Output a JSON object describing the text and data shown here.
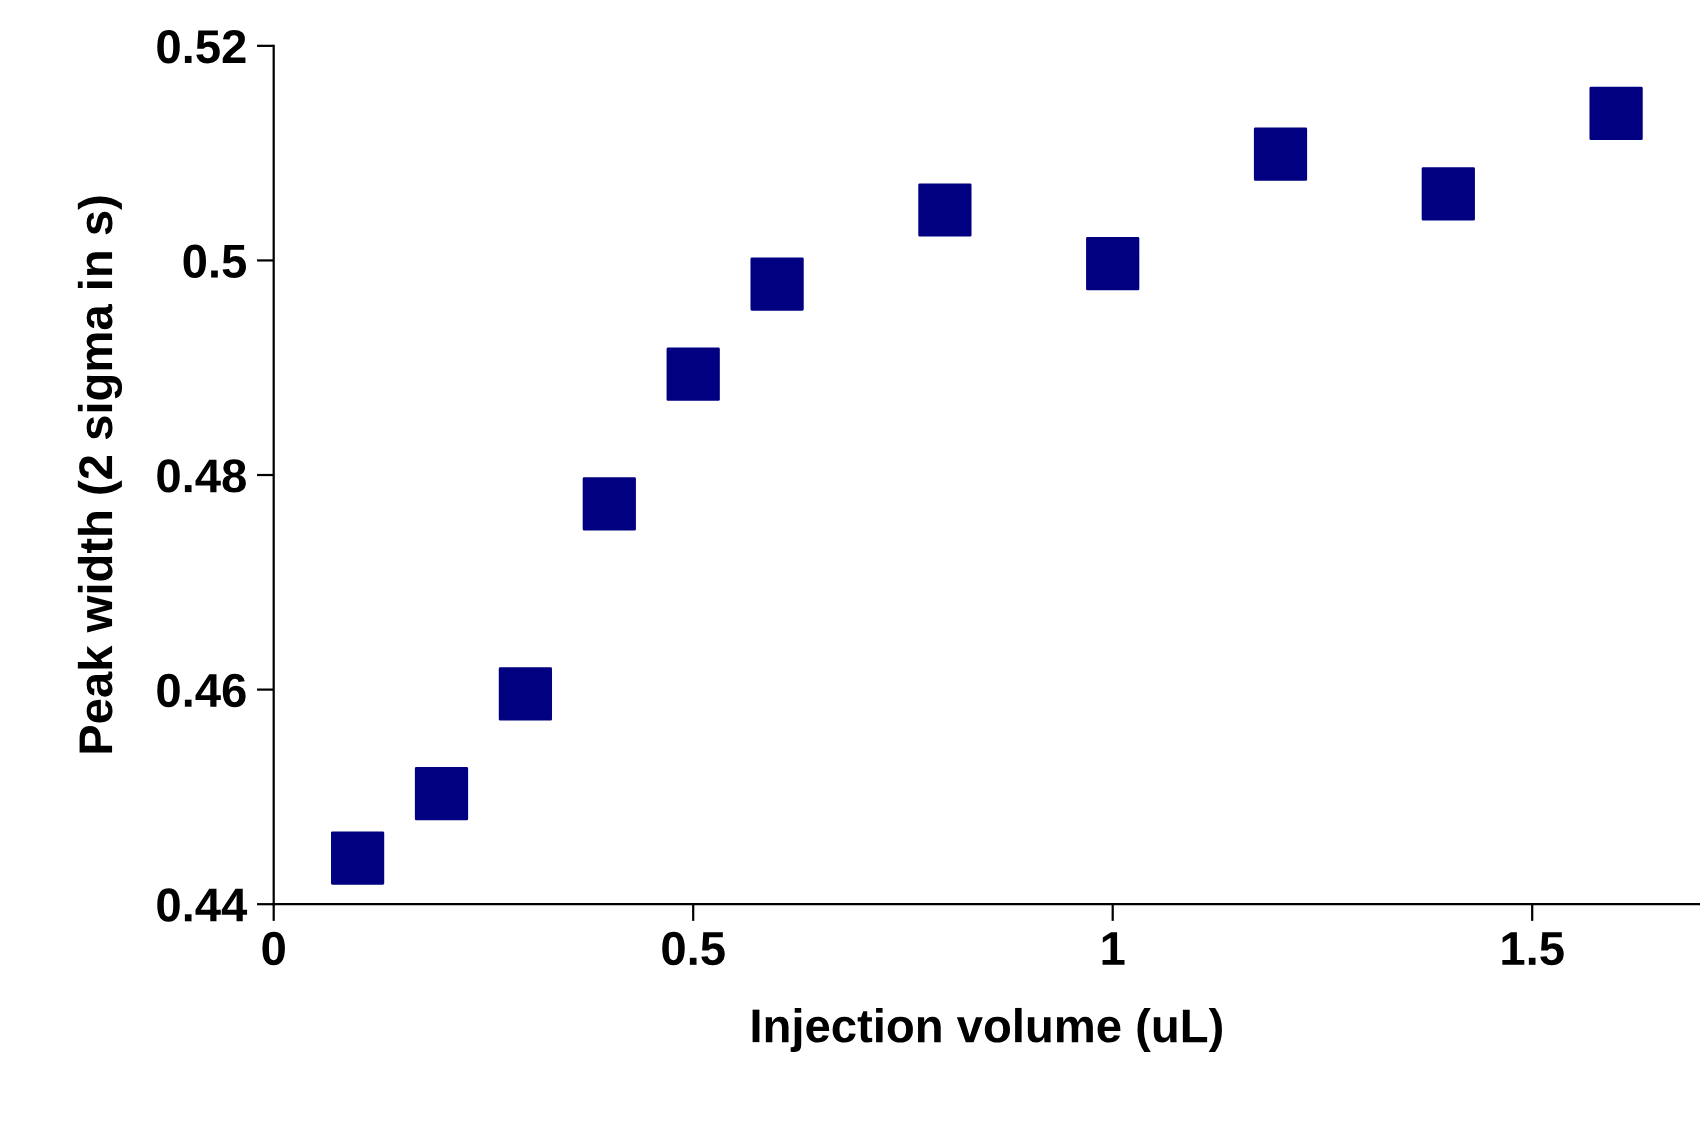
{
  "chart_data": {
    "type": "scatter",
    "xlabel": "Injection volume (uL)",
    "ylabel": "Peak width (2 sigma in s)",
    "x": [
      0.1,
      0.2,
      0.3,
      0.4,
      0.5,
      0.6,
      0.8,
      1.0,
      1.2,
      1.4,
      1.6
    ],
    "series": [
      {
        "color": "#000080",
        "values": [
          0.4443,
          0.4503,
          0.4596,
          0.4773,
          0.4894,
          0.4978,
          0.5047,
          0.4997,
          0.5099,
          0.5062,
          0.5137
        ]
      }
    ],
    "xlim": [
      0,
      1.7
    ],
    "xticks": [
      0,
      0.5,
      1,
      1.5
    ],
    "ylim": [
      0.44,
      0.52
    ],
    "yticks": [
      0.44,
      0.46,
      0.48,
      0.5,
      0.52
    ],
    "marker": "square",
    "grid": false,
    "legend": false
  }
}
